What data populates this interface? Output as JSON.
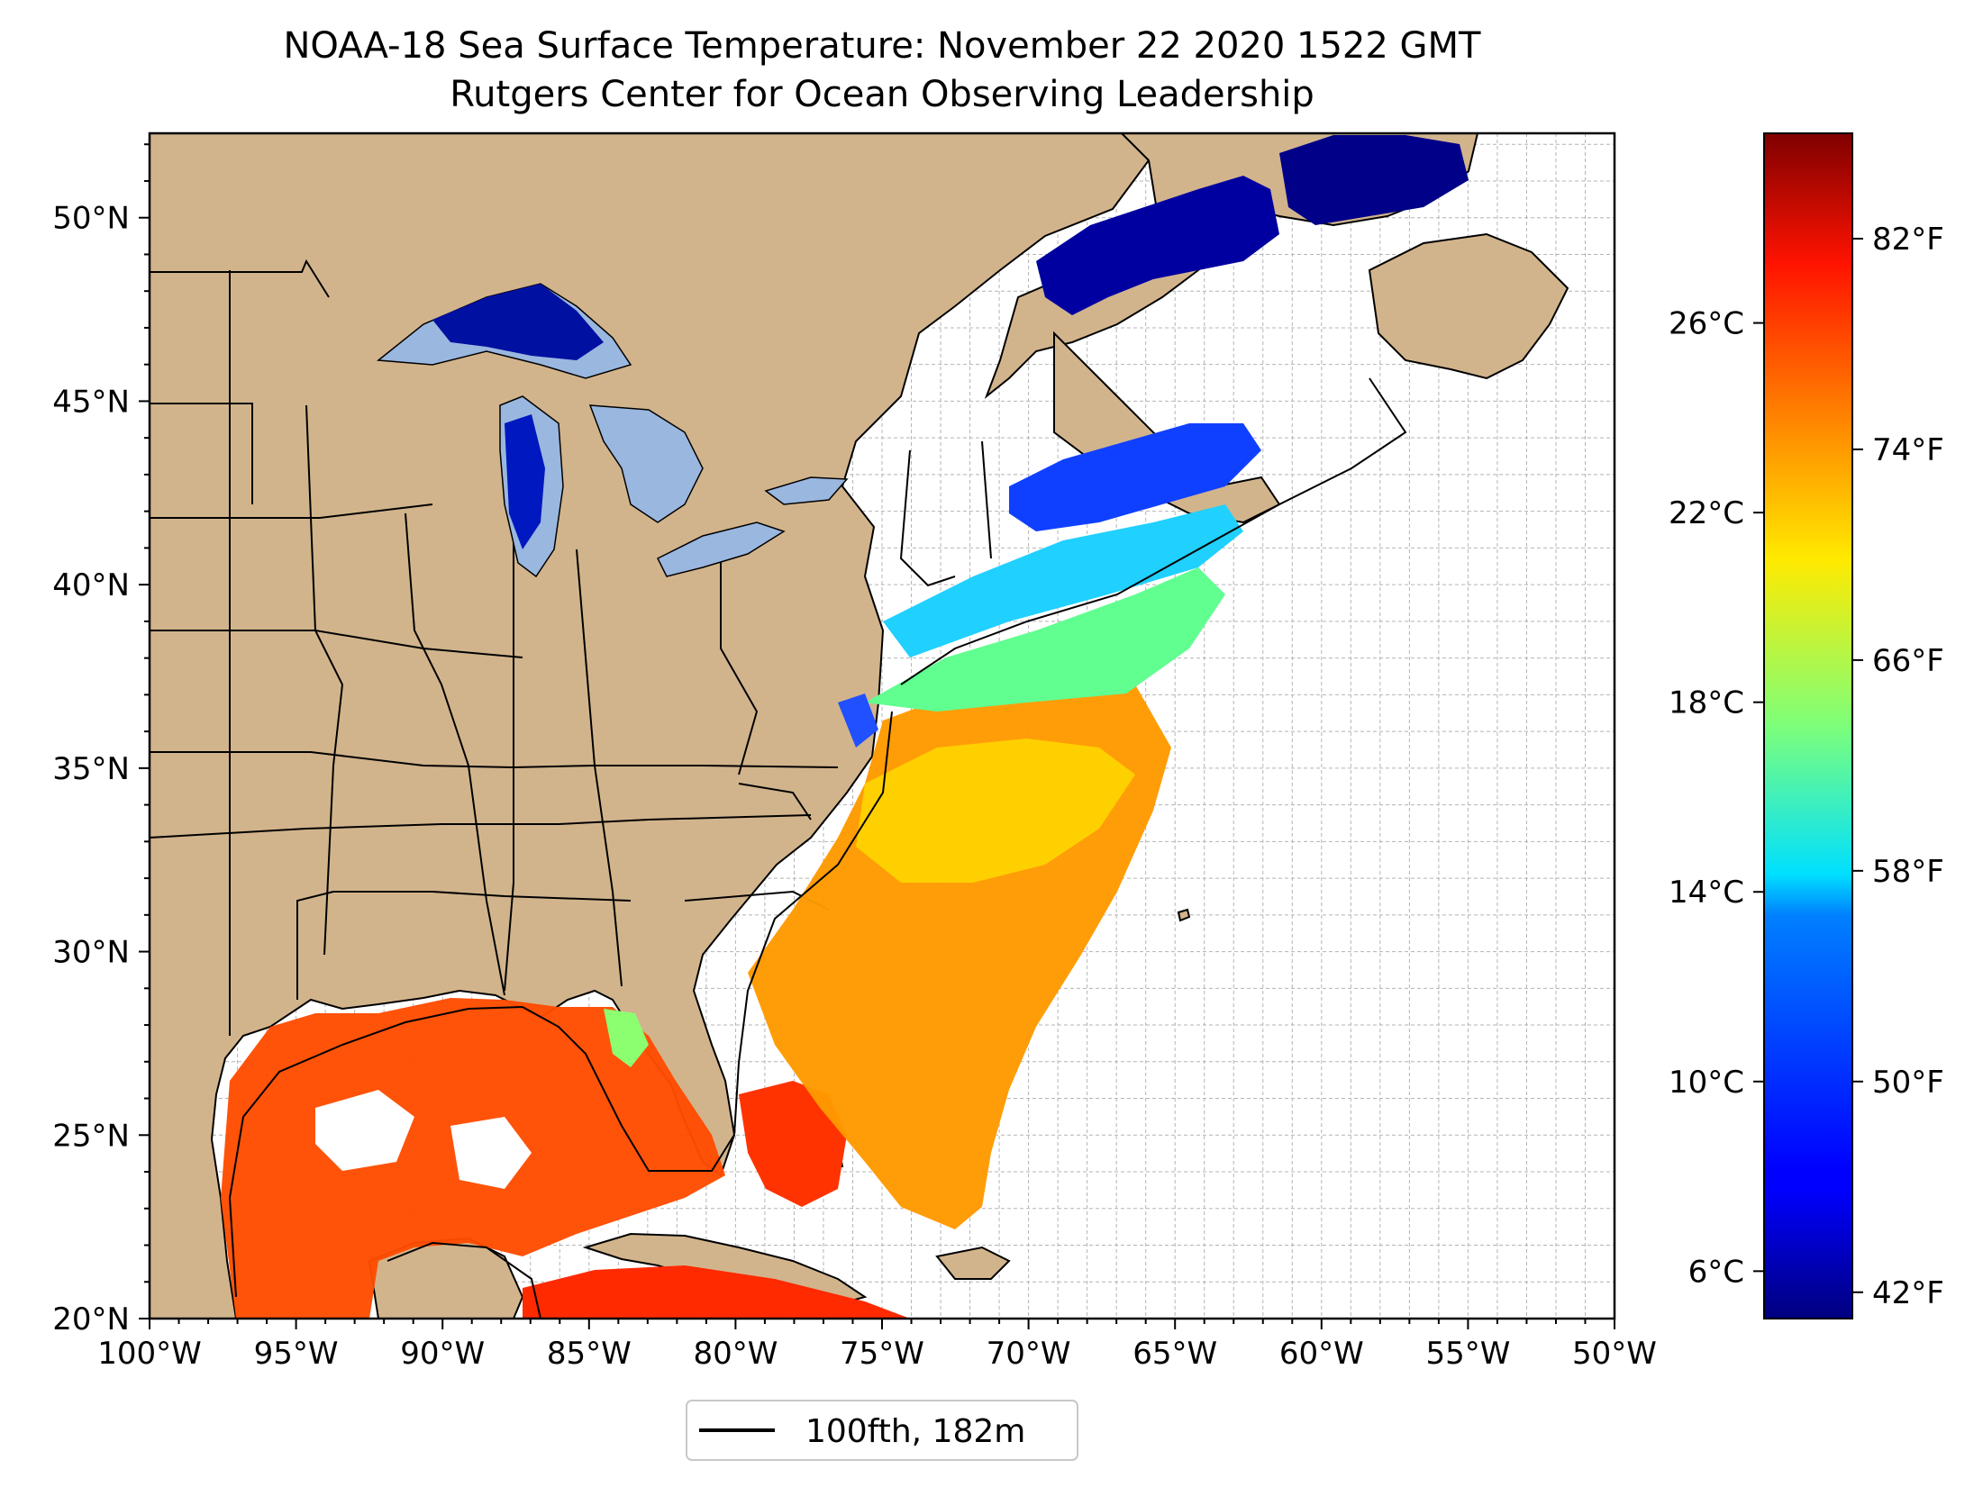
{
  "figure": {
    "title": "NOAA-18 Sea Surface Temperature: November 22 2020 1522 GMT",
    "subtitle": "Rutgers Center for Ocean Observing Leadership"
  },
  "map": {
    "lon_range": [
      -100,
      -50
    ],
    "lat_range": [
      20,
      52.3
    ],
    "lon_ticks": [
      {
        "lon": -100,
        "label": "100°W"
      },
      {
        "lon": -95,
        "label": "95°W"
      },
      {
        "lon": -90,
        "label": "90°W"
      },
      {
        "lon": -85,
        "label": "85°W"
      },
      {
        "lon": -80,
        "label": "80°W"
      },
      {
        "lon": -75,
        "label": "75°W"
      },
      {
        "lon": -70,
        "label": "70°W"
      },
      {
        "lon": -65,
        "label": "65°W"
      },
      {
        "lon": -60,
        "label": "60°W"
      },
      {
        "lon": -55,
        "label": "55°W"
      },
      {
        "lon": -50,
        "label": "50°W"
      }
    ],
    "lat_ticks": [
      {
        "lat": 20,
        "label": "20°N"
      },
      {
        "lat": 25,
        "label": "25°N"
      },
      {
        "lat": 30,
        "label": "30°N"
      },
      {
        "lat": 35,
        "label": "35°N"
      },
      {
        "lat": 40,
        "label": "40°N"
      },
      {
        "lat": 45,
        "label": "45°N"
      },
      {
        "lat": 50,
        "label": "50°N"
      }
    ],
    "grid_step_deg": 1,
    "colors": {
      "land": "#d2b48c",
      "lakes": "#9ab7e0",
      "ocean_nodata": "#ffffff",
      "grid": "#b4b4b4",
      "border": "#000000"
    }
  },
  "colorbar": {
    "colormap": "jet",
    "range_c": [
      5,
      30
    ],
    "celsius_ticks": [
      {
        "value": 6,
        "label": "6°C"
      },
      {
        "value": 10,
        "label": "10°C"
      },
      {
        "value": 14,
        "label": "14°C"
      },
      {
        "value": 18,
        "label": "18°C"
      },
      {
        "value": 22,
        "label": "22°C"
      },
      {
        "value": 26,
        "label": "26°C"
      }
    ],
    "fahrenheit_ticks": [
      {
        "value": 42,
        "label": "42°F"
      },
      {
        "value": 50,
        "label": "50°F"
      },
      {
        "value": 58,
        "label": "58°F"
      },
      {
        "value": 66,
        "label": "66°F"
      },
      {
        "value": 74,
        "label": "74°F"
      },
      {
        "value": 82,
        "label": "82°F"
      }
    ]
  },
  "legend": {
    "entries": [
      {
        "label": "100fth, 182m",
        "color": "#000000"
      }
    ]
  }
}
